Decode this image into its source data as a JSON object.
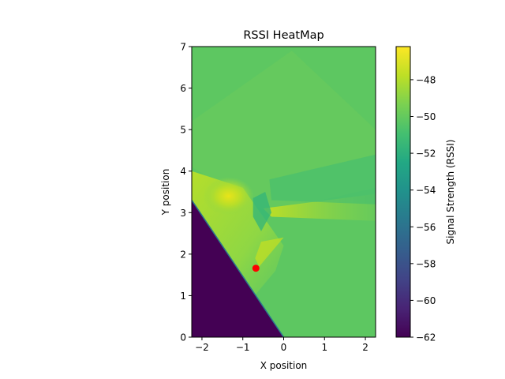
{
  "chart_data": {
    "type": "heatmap",
    "title": "RSSI HeatMap",
    "xlabel": "X position",
    "ylabel": "Y position",
    "xlim": [
      -2.25,
      2.25
    ],
    "ylim": [
      0,
      7
    ],
    "xticks": [
      -2,
      -1,
      0,
      1,
      2
    ],
    "yticks": [
      0,
      1,
      2,
      3,
      4,
      5,
      6,
      7
    ],
    "colormap": "viridis",
    "colorbar": {
      "label": "Signal Strength (RSSI)",
      "range": [
        -62,
        -46.2
      ],
      "ticks": [
        -62,
        -60,
        -58,
        -56,
        -54,
        -52,
        -50,
        -48
      ]
    },
    "regions": [
      {
        "description": "background",
        "rssi": -50.2
      },
      {
        "description": "dead zone lower-left triangle",
        "rssi": -62
      },
      {
        "description": "hot spot",
        "x": -1.35,
        "y": 3.4,
        "rssi": -46.5
      }
    ],
    "marker": {
      "x": -0.68,
      "y": 1.66,
      "color": "#ff0000"
    }
  }
}
